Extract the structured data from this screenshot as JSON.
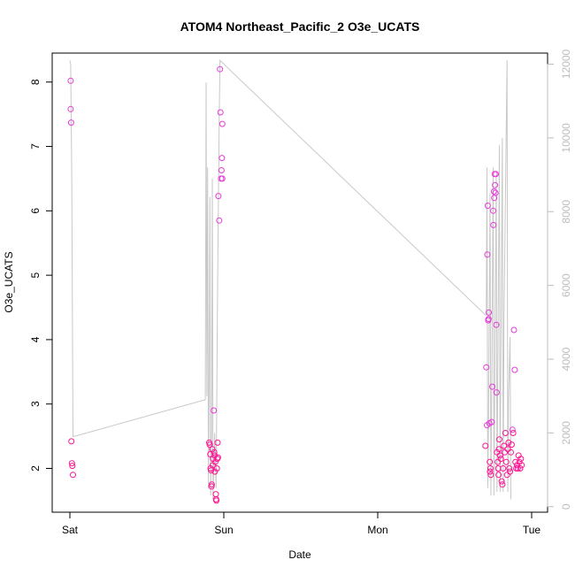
{
  "chart_data": {
    "type": "scatter",
    "title": "ATOM4 Northeast_Pacific_2 O3e_UCATS",
    "xlabel": "Date",
    "ylabel": "O3e_UCATS",
    "x_ticks": [
      "Sat",
      "Sun",
      "Mon",
      "Tue"
    ],
    "x_range_days": [
      0,
      3.07
    ],
    "ylim": [
      1.32,
      8.45
    ],
    "y_ticks": [
      2,
      3,
      4,
      5,
      6,
      7,
      8
    ],
    "y2lim": [
      -150,
      12300
    ],
    "y2_ticks": [
      0,
      2000,
      4000,
      6000,
      8000,
      10000,
      12000
    ],
    "grid": false,
    "colors": {
      "low_altitude": "#ff1493",
      "high_altitude": "#e63cd9",
      "altitude_line": "#c8c8c8",
      "right_axis": "#bdbdbd"
    },
    "series": [
      {
        "axis": "left",
        "points": [
          [
            0.005,
            8.02
          ],
          [
            0.005,
            7.58
          ],
          [
            0.008,
            7.37
          ],
          [
            0.01,
            2.42
          ],
          [
            0.013,
            2.08
          ],
          [
            0.016,
            2.04
          ],
          [
            0.02,
            1.9
          ],
          [
            0.905,
            2.4
          ],
          [
            0.908,
            2.37
          ],
          [
            0.912,
            2.22
          ],
          [
            0.914,
            2.0
          ],
          [
            0.917,
            1.97
          ],
          [
            0.92,
            1.72
          ],
          [
            0.922,
            1.75
          ],
          [
            0.925,
            2.3
          ],
          [
            0.928,
            2.05
          ],
          [
            0.93,
            2.15
          ],
          [
            0.935,
            2.9
          ],
          [
            0.938,
            2.25
          ],
          [
            0.94,
            2.2
          ],
          [
            0.942,
            1.95
          ],
          [
            0.945,
            2.1
          ],
          [
            0.948,
            1.6
          ],
          [
            0.95,
            1.52
          ],
          [
            0.952,
            1.5
          ],
          [
            0.955,
            2.0
          ],
          [
            0.958,
            2.15
          ],
          [
            0.96,
            2.4
          ],
          [
            0.962,
            2.17
          ],
          [
            0.965,
            6.23
          ],
          [
            0.97,
            5.85
          ],
          [
            0.975,
            8.2
          ],
          [
            0.978,
            7.53
          ],
          [
            0.982,
            6.5
          ],
          [
            0.985,
            6.63
          ],
          [
            0.988,
            6.82
          ],
          [
            0.99,
            7.35
          ],
          [
            0.99,
            6.5
          ],
          [
            2.7,
            2.35
          ],
          [
            2.705,
            3.57
          ],
          [
            2.71,
            2.67
          ],
          [
            2.712,
            5.32
          ],
          [
            2.715,
            6.08
          ],
          [
            2.718,
            4.3
          ],
          [
            2.72,
            4.32
          ],
          [
            2.722,
            4.42
          ],
          [
            2.725,
            2.7
          ],
          [
            2.728,
            2.1
          ],
          [
            2.73,
            1.95
          ],
          [
            2.732,
            2.0
          ],
          [
            2.735,
            1.9
          ],
          [
            2.74,
            2.72
          ],
          [
            2.745,
            3.27
          ],
          [
            2.75,
            6.0
          ],
          [
            2.752,
            5.78
          ],
          [
            2.755,
            6.3
          ],
          [
            2.757,
            6.2
          ],
          [
            2.76,
            6.57
          ],
          [
            2.762,
            6.4
          ],
          [
            2.765,
            6.28
          ],
          [
            2.768,
            6.57
          ],
          [
            2.77,
            4.23
          ],
          [
            2.772,
            3.18
          ],
          [
            2.775,
            2.25
          ],
          [
            2.78,
            2.1
          ],
          [
            2.782,
            2.0
          ],
          [
            2.785,
            1.9
          ],
          [
            2.788,
            2.3
          ],
          [
            2.79,
            2.45
          ],
          [
            2.795,
            2.2
          ],
          [
            2.8,
            2.15
          ],
          [
            2.805,
            1.8
          ],
          [
            2.81,
            1.75
          ],
          [
            2.815,
            2.0
          ],
          [
            2.82,
            2.35
          ],
          [
            2.825,
            2.25
          ],
          [
            2.83,
            2.55
          ],
          [
            2.835,
            2.1
          ],
          [
            2.84,
            1.9
          ],
          [
            2.845,
            2.3
          ],
          [
            2.85,
            2.4
          ],
          [
            2.855,
            2.0
          ],
          [
            2.86,
            1.95
          ],
          [
            2.865,
            2.25
          ],
          [
            2.87,
            2.37
          ],
          [
            2.875,
            2.6
          ],
          [
            2.88,
            2.55
          ],
          [
            2.885,
            4.15
          ],
          [
            2.89,
            3.53
          ],
          [
            2.895,
            2.1
          ],
          [
            2.9,
            2.0
          ],
          [
            2.905,
            2.05
          ],
          [
            2.91,
            2.0
          ],
          [
            2.915,
            2.2
          ],
          [
            2.92,
            2.1
          ],
          [
            2.925,
            2.0
          ],
          [
            2.93,
            2.15
          ],
          [
            2.935,
            2.05
          ]
        ]
      },
      {
        "axis": "right",
        "line": [
          [
            0.0,
            12100
          ],
          [
            0.005,
            12000
          ],
          [
            0.012,
            9000
          ],
          [
            0.02,
            1900
          ],
          [
            0.025,
            1900
          ],
          [
            0.88,
            2900
          ],
          [
            0.885,
            11500
          ],
          [
            0.89,
            3000
          ],
          [
            0.895,
            9200
          ],
          [
            0.9,
            500
          ],
          [
            0.905,
            3500
          ],
          [
            0.91,
            8400
          ],
          [
            0.915,
            300
          ],
          [
            0.92,
            2000
          ],
          [
            0.925,
            8900
          ],
          [
            0.93,
            200
          ],
          [
            0.94,
            2000
          ],
          [
            0.95,
            500
          ],
          [
            0.96,
            6000
          ],
          [
            0.97,
            10500
          ],
          [
            0.975,
            12100
          ],
          [
            0.975,
            12100
          ],
          [
            2.7,
            5200
          ],
          [
            2.705,
            5200
          ],
          [
            2.71,
            9200
          ],
          [
            2.715,
            500
          ],
          [
            2.72,
            2400
          ],
          [
            2.73,
            8500
          ],
          [
            2.735,
            300
          ],
          [
            2.74,
            3000
          ],
          [
            2.75,
            9200
          ],
          [
            2.755,
            300
          ],
          [
            2.76,
            3000
          ],
          [
            2.77,
            9000
          ],
          [
            2.775,
            400
          ],
          [
            2.78,
            3500
          ],
          [
            2.79,
            9800
          ],
          [
            2.795,
            400
          ],
          [
            2.8,
            4000
          ],
          [
            2.81,
            10000
          ],
          [
            2.815,
            400
          ],
          [
            2.82,
            5000
          ],
          [
            2.84,
            12100
          ],
          [
            2.845,
            400
          ],
          [
            2.85,
            3000
          ],
          [
            2.86,
            4600
          ],
          [
            2.865,
            200
          ]
        ]
      }
    ]
  }
}
